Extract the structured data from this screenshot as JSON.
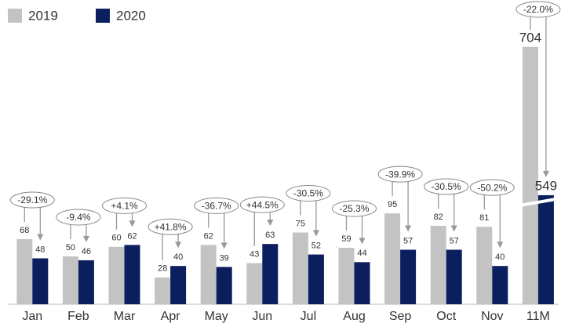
{
  "chart_data": {
    "type": "bar",
    "categories": [
      "Jan",
      "Feb",
      "Mar",
      "Apr",
      "May",
      "Jun",
      "Jul",
      "Aug",
      "Sep",
      "Oct",
      "Nov",
      "11M"
    ],
    "series": [
      {
        "name": "2019",
        "color": "#c3c3c3",
        "values": [
          68,
          50,
          60,
          28,
          62,
          43,
          75,
          59,
          95,
          82,
          81,
          704
        ]
      },
      {
        "name": "2020",
        "color": "#0b1f5e",
        "values": [
          48,
          46,
          62,
          40,
          39,
          63,
          52,
          44,
          57,
          57,
          40,
          549
        ]
      }
    ],
    "annotations": [
      "-29.1%",
      "-9.4%",
      "+4.1%",
      "+41.8%",
      "-36.7%",
      "+44.5%",
      "-30.5%",
      "-25.3%",
      "-39.9%",
      "-30.5%",
      "-50.2%",
      "-22.0%"
    ],
    "legend": "top-left"
  }
}
